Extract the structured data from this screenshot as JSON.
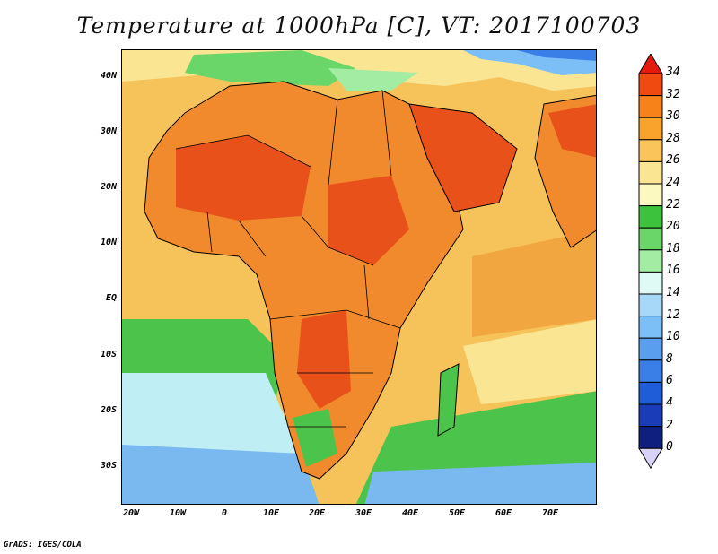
{
  "title": "Temperature at 1000hPa [C], VT: 2017100703",
  "credit": "GrADS: IGES/COLA",
  "axes": {
    "lat_labels": [
      "40N",
      "30N",
      "20N",
      "10N",
      "EQ",
      "10S",
      "20S",
      "30S"
    ],
    "lon_labels": [
      "20W",
      "10W",
      "0",
      "10E",
      "20E",
      "30E",
      "40E",
      "50E",
      "60E",
      "70E"
    ]
  },
  "colorbar": {
    "levels": [
      "34",
      "32",
      "30",
      "28",
      "26",
      "24",
      "22",
      "20",
      "18",
      "16",
      "14",
      "12",
      "10",
      "8",
      "6",
      "4",
      "2",
      "0"
    ],
    "colors": [
      "#e41a0c",
      "#f04a10",
      "#f8821a",
      "#faa32c",
      "#fac45a",
      "#fae593",
      "#fbf8c0",
      "#3cc23c",
      "#6ad66a",
      "#a3eca3",
      "#dffaf5",
      "#a8d8f8",
      "#7cbef6",
      "#5a9ef0",
      "#3a7ee8",
      "#1e5cd8",
      "#1a3cb8",
      "#0e1f80",
      "#d8d2f8"
    ]
  },
  "colors": {
    "ocean_warm": "#f7c154",
    "ocean_hot": "#f2a640",
    "land_hot": "#e8521a",
    "land_warm": "#f08a2c",
    "cool_green": "#4cc44c",
    "cool_cyan": "#bfeff4",
    "cold_blue": "#7ab8f0"
  }
}
